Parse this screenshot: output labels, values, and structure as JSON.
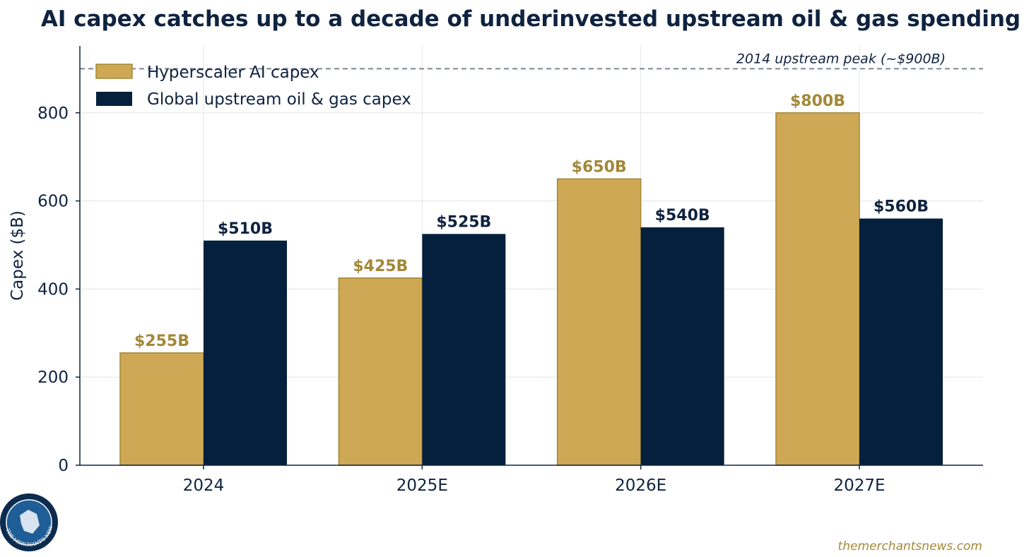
{
  "chart_data": {
    "type": "bar",
    "title": "AI capex catches up to a decade of underinvested upstream oil & gas spending",
    "xlabel": "",
    "ylabel": "Capex ($B)",
    "categories": [
      "2024",
      "2025E",
      "2026E",
      "2027E"
    ],
    "series": [
      {
        "name": "Hyperscaler AI capex",
        "values": [
          255,
          425,
          650,
          800
        ],
        "labels": [
          "$255B",
          "$425B",
          "$650B",
          "$800B"
        ],
        "color": "#cfa855",
        "edge_color": "#a38838",
        "label_color": "#a38838"
      },
      {
        "name": "Global upstream oil & gas capex",
        "values": [
          510,
          525,
          540,
          560
        ],
        "labels": [
          "$510B",
          "$525B",
          "$540B",
          "$560B"
        ],
        "color": "#04203d",
        "edge_color": "#04203d",
        "label_color": "#0f2340"
      }
    ],
    "ylim": [
      0,
      900
    ],
    "yticks": [
      0,
      200,
      400,
      600,
      800
    ],
    "grid": true,
    "legend_position": "top-left",
    "reference_line": {
      "value": 900,
      "label": "2014 upstream peak (~$900B)"
    }
  },
  "footer": {
    "source": "themerchantsnews.com"
  },
  "logo": {
    "text": "THE MERCHANT'S NEWS"
  },
  "colors": {
    "text": "#0f2340",
    "gold": "#cfa855",
    "navy": "#04203d",
    "grid": "#e3e3e3",
    "ref_line": "#7d8793"
  }
}
